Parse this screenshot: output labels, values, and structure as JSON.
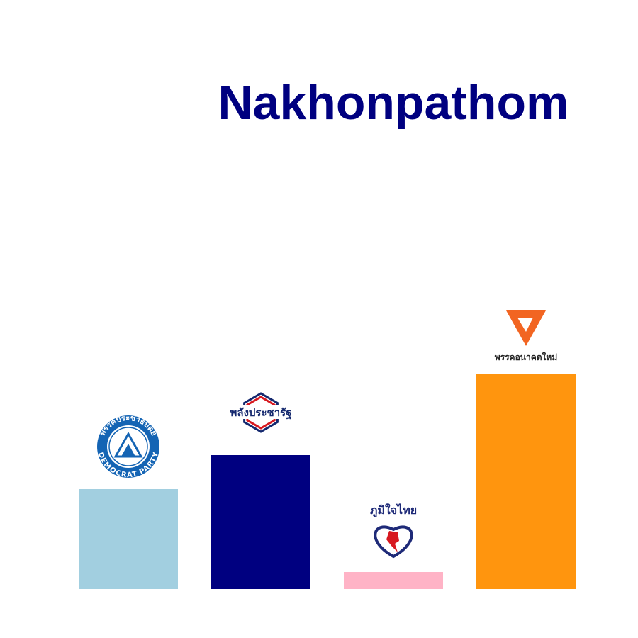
{
  "chart_data": {
    "type": "bar",
    "title": "Nakhonpathom",
    "title_color": "#000080",
    "categories": [
      "Democrat Party",
      "Palang Pracharath",
      "Bhumjaithai",
      "Future Forward"
    ],
    "values": [
      47,
      63,
      8,
      101
    ],
    "colors": [
      "#a2cfe0",
      "#000080",
      "#ffb3c6",
      "#ff950e"
    ],
    "ylim": [
      0,
      150
    ],
    "xlabel": "",
    "ylabel": "",
    "grid": false,
    "legend": "none"
  },
  "logos": [
    {
      "icon": "democrat-party-logo",
      "top_text": "พรรคประชาธิปัตย์",
      "bottom_text": "DEMOCRAT PARTY",
      "color": "#1464b4"
    },
    {
      "icon": "palang-pracharath-logo",
      "text": "พลังประชารัฐ",
      "color": "#14286e",
      "accent": "#d71920"
    },
    {
      "icon": "bhumjaithai-logo",
      "text": "ภูมิใจไทย",
      "color": "#1e2a78",
      "accent": "#d71920"
    },
    {
      "icon": "future-forward-logo",
      "text": "พรรคอนาคตใหม่",
      "color": "#f26522"
    }
  ]
}
